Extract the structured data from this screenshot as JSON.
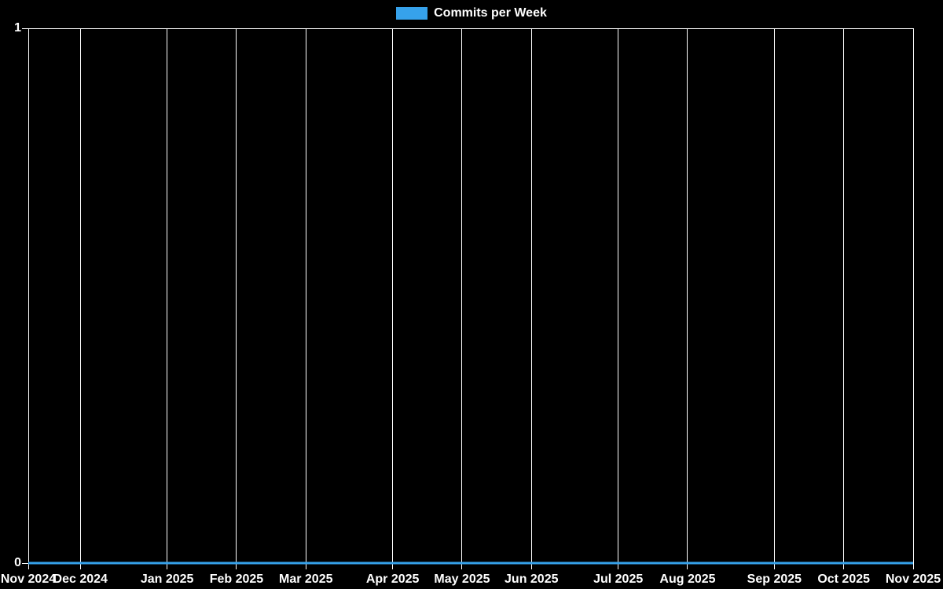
{
  "chart_data": {
    "type": "line",
    "title": "Commits per Week",
    "background": "#000000",
    "legend_position": "top",
    "legend": [
      {
        "label": "Commits per Week",
        "color": "#36a2eb"
      }
    ],
    "series": [
      {
        "name": "Commits per Week",
        "color": "#36a2eb",
        "line_width": 3,
        "values": [
          0,
          0,
          0,
          0,
          0,
          0,
          0,
          0,
          0,
          0,
          0,
          0,
          0,
          0,
          0,
          0,
          0,
          0,
          0,
          0,
          0,
          0,
          0,
          0,
          0,
          0,
          0,
          0,
          0,
          0,
          0,
          0,
          0,
          0,
          0,
          0,
          0,
          0,
          0,
          0,
          0,
          0,
          0,
          0,
          0,
          0,
          0,
          0,
          0,
          0,
          0,
          0
        ]
      }
    ],
    "xlabel": "",
    "ylabel": "",
    "x_unit": "weeks",
    "x_range_weeks": [
      0,
      51
    ],
    "x_ticks": [
      {
        "label": "Nov 2024",
        "week_offset": 0
      },
      {
        "label": "Dec 2024",
        "week_offset": 3
      },
      {
        "label": "Jan 2025",
        "week_offset": 8
      },
      {
        "label": "Feb 2025",
        "week_offset": 12
      },
      {
        "label": "Mar 2025",
        "week_offset": 16
      },
      {
        "label": "Apr 2025",
        "week_offset": 21
      },
      {
        "label": "May 2025",
        "week_offset": 25
      },
      {
        "label": "Jun 2025",
        "week_offset": 29
      },
      {
        "label": "Jul 2025",
        "week_offset": 34
      },
      {
        "label": "Aug 2025",
        "week_offset": 38
      },
      {
        "label": "Sep 2025",
        "week_offset": 43
      },
      {
        "label": "Oct 2025",
        "week_offset": 47
      },
      {
        "label": "Nov 2025",
        "week_offset": 51
      }
    ],
    "ylim": [
      0,
      1
    ],
    "y_ticks": [
      {
        "label": "0",
        "value": 0
      },
      {
        "label": "1",
        "value": 1
      }
    ],
    "grid": {
      "vertical": true,
      "horizontal": false,
      "color": "#ffffff"
    }
  }
}
